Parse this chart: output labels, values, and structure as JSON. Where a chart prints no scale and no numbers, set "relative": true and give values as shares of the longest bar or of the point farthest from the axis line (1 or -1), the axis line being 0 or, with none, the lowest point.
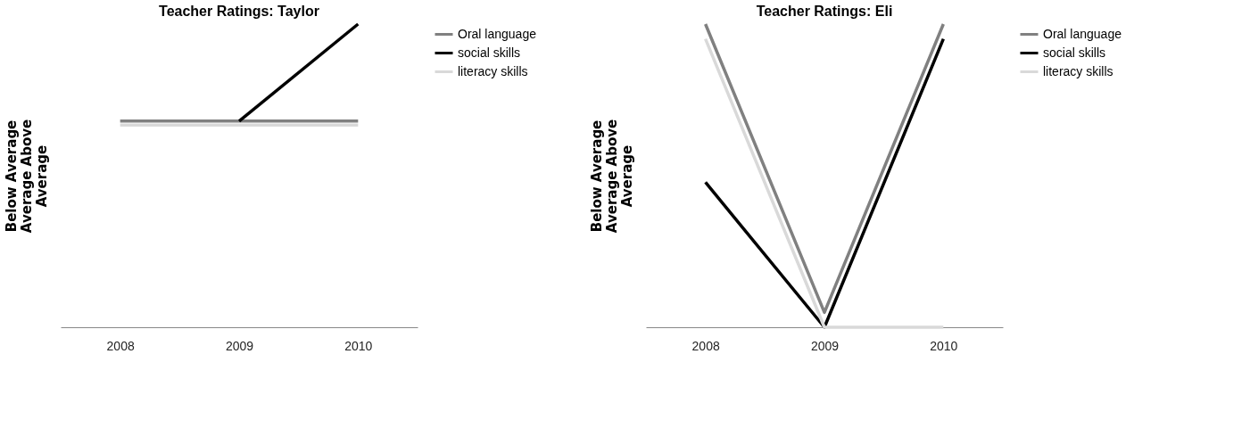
{
  "chart_data": [
    {
      "type": "line",
      "title": "Teacher Ratings: Taylor",
      "ylabel": "Below Average Average Above Average",
      "categories": [
        "2008",
        "2009",
        "2010"
      ],
      "relative": true,
      "legend": "right",
      "grid": false,
      "marker": "none",
      "line_style": "solid",
      "series": [
        {
          "name": "Oral language",
          "color": "#808080",
          "values": [
            0.68,
            0.68,
            0.68
          ]
        },
        {
          "name": "social skills",
          "color": "#000000",
          "values": [
            null,
            0.68,
            1
          ]
        },
        {
          "name": "literacy skills",
          "color": "#d9d9d9",
          "values": [
            0.667,
            0.667,
            0.667
          ]
        }
      ]
    },
    {
      "type": "line",
      "title": "Teacher Ratings: Eli",
      "ylabel": "Below Average Average Above Average",
      "categories": [
        "2008",
        "2009",
        "2010"
      ],
      "relative": true,
      "legend": "right",
      "grid": false,
      "marker": "none",
      "line_style": "solid",
      "series": [
        {
          "name": "Oral language",
          "color": "#808080",
          "values": [
            1,
            0.049,
            1
          ]
        },
        {
          "name": "social skills",
          "color": "#000000",
          "values": [
            0.478,
            0,
            0.951
          ]
        },
        {
          "name": "literacy skills",
          "color": "#d9d9d9",
          "values": [
            0.951,
            0,
            0
          ]
        }
      ]
    }
  ]
}
